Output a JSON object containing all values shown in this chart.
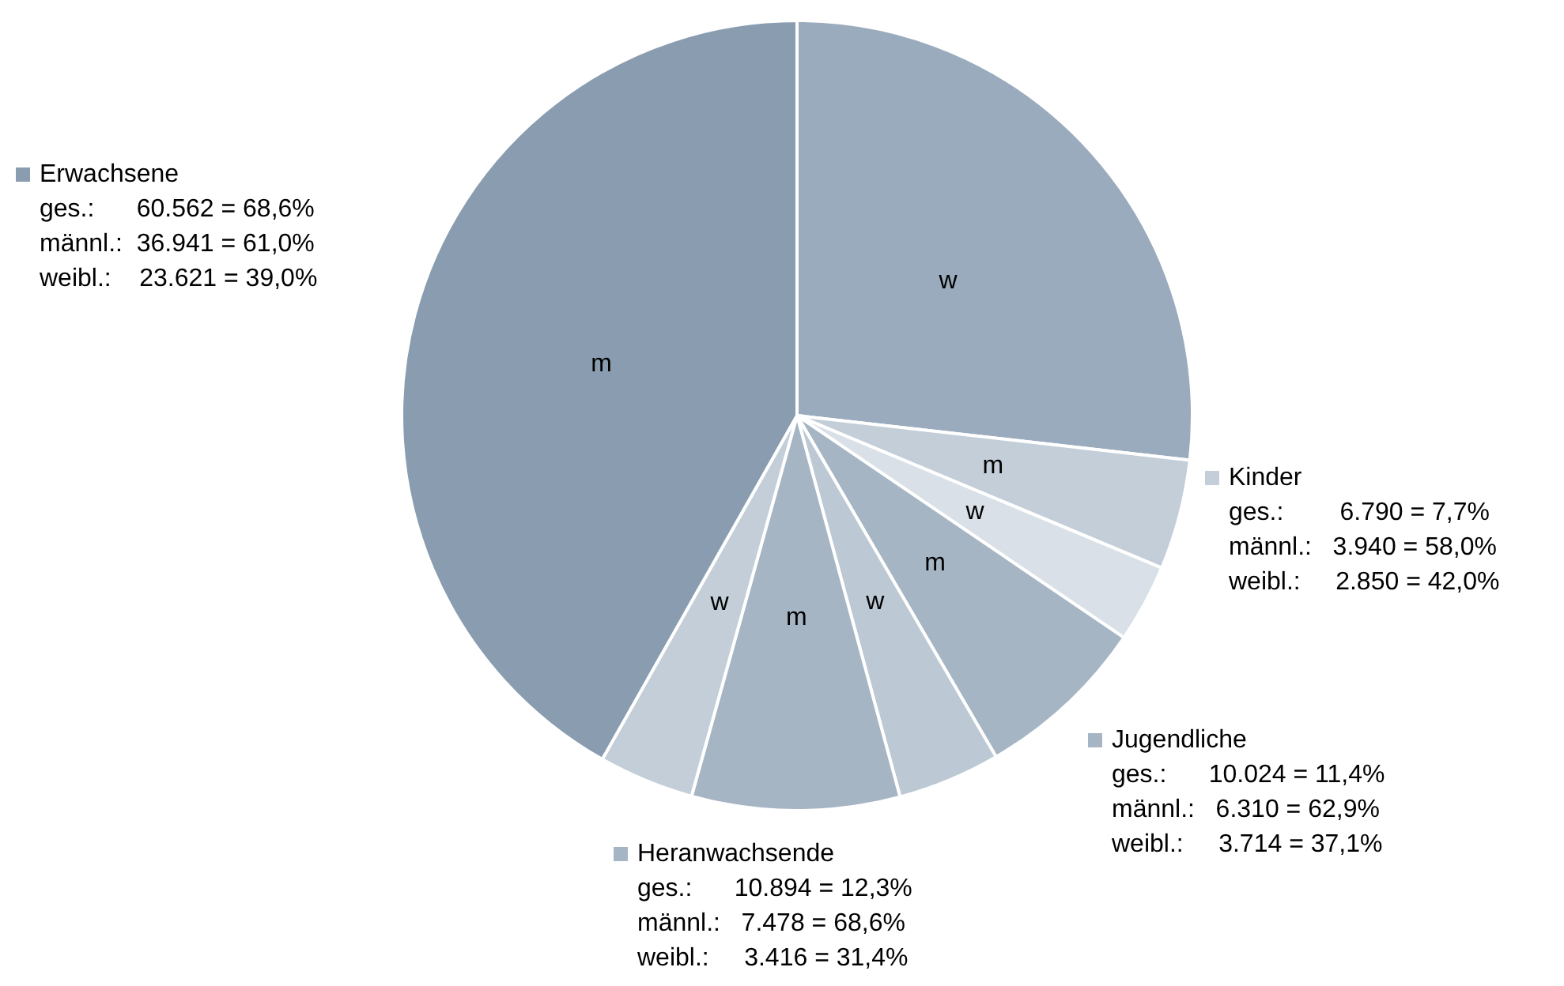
{
  "chart_data": {
    "type": "pie",
    "categories": [
      "w",
      "m",
      "w",
      "m",
      "w",
      "m",
      "w",
      "m"
    ],
    "values": [
      26.8,
      4.5,
      3.2,
      7.1,
      4.2,
      8.5,
      3.9,
      41.8
    ],
    "colors": [
      "#9aabbd",
      "#c3ced8",
      "#d9e0e7",
      "#a6b5c4",
      "#bcc8d3",
      "#a6b5c4",
      "#c3ced8",
      "#8a9db0"
    ],
    "annotations": [
      "Erwachsene\nges.:      60.562 = 68,6%\nmännl.:  36.941 = 61,0%\nweibl.:    23.621 = 39,0%",
      "Kinder\nges.:        6.790 = 7,7%\nmännl.:   3.940 = 58,0%\nweibl.:     2.850 = 42,0%",
      "Jugendliche\nges.:      10.024 = 11,4%\nmännl.:   6.310 = 62,9%\nweibl.:     3.714 = 37,1%",
      "Heranwachsende\nges.:      10.894 = 12,3%\nmännl.:   7.478 = 68,6%\nweibl.:     3.416 = 31,4%"
    ]
  }
}
